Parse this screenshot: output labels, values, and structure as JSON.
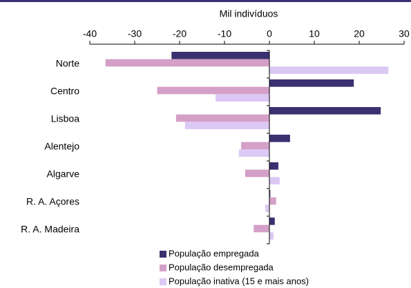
{
  "chart_data": {
    "type": "barh",
    "title": "Mil indivíduos",
    "categories": [
      "Norte",
      "Centro",
      "Lisboa",
      "Alentejo",
      "Algarve",
      "R. A. Açores",
      "R. A. Madeira"
    ],
    "series": [
      {
        "name": "População empregada",
        "color": "#3b3170",
        "values": [
          -21.8,
          18.8,
          24.8,
          4.6,
          2.0,
          0.2,
          1.2
        ]
      },
      {
        "name": "População desempregada",
        "color": "#d4a0c8",
        "values": [
          -36.5,
          -25.0,
          -20.8,
          -6.3,
          -5.4,
          1.5,
          -3.5
        ]
      },
      {
        "name": "População inativa (15 e mais anos)",
        "color": "#dcc8f4",
        "values": [
          26.5,
          -12.0,
          -18.8,
          -6.8,
          2.3,
          -0.9,
          0.9
        ]
      }
    ],
    "xlim": [
      -40,
      30
    ],
    "xticks": [
      -40,
      -30,
      -20,
      -10,
      0,
      10,
      20,
      30
    ],
    "grid": false
  }
}
